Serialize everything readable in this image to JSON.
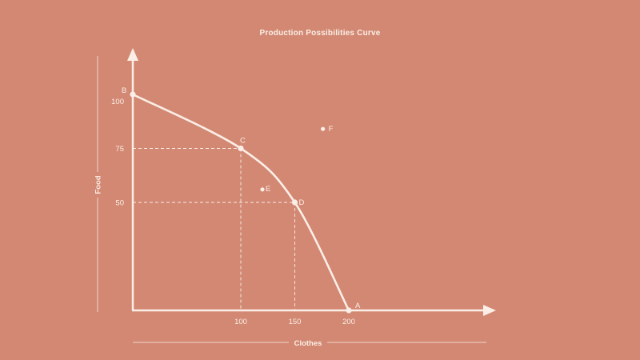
{
  "chart_data": {
    "type": "line",
    "title": "Production Possibilities Curve",
    "xlabel": "Clothes",
    "ylabel": "Food",
    "x_ticks": [
      "100",
      "150",
      "200"
    ],
    "y_ticks": [
      "50",
      "75",
      "100"
    ],
    "series": [
      {
        "points": [
          {
            "x": 0,
            "y": 100
          },
          {
            "x": 100,
            "y": 75
          },
          {
            "x": 150,
            "y": 50
          },
          {
            "x": 200,
            "y": 0
          }
        ]
      }
    ],
    "labeled_points": [
      {
        "label": "A",
        "x": 200,
        "y": 0,
        "on_curve": true
      },
      {
        "label": "B",
        "x": 0,
        "y": 100,
        "on_curve": true
      },
      {
        "label": "C",
        "x": 100,
        "y": 75,
        "on_curve": true
      },
      {
        "label": "D",
        "x": 150,
        "y": 50,
        "on_curve": true
      },
      {
        "label": "E",
        "x": 120,
        "y": 56,
        "on_curve": false
      },
      {
        "label": "F",
        "x": 176,
        "y": 84,
        "on_curve": false
      }
    ],
    "guides": [
      {
        "x": 100,
        "y": 75
      },
      {
        "x": 150,
        "y": 50
      }
    ],
    "grid": false,
    "colors": {
      "background": "#d28873",
      "foreground": "#fbeee6"
    }
  }
}
